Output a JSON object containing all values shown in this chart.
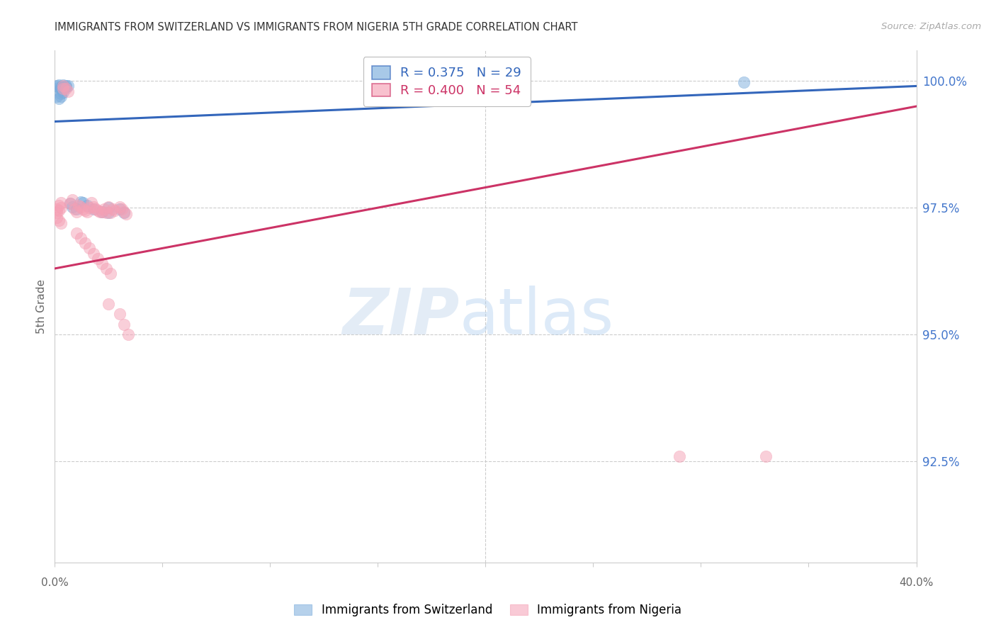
{
  "title": "IMMIGRANTS FROM SWITZERLAND VS IMMIGRANTS FROM NIGERIA 5TH GRADE CORRELATION CHART",
  "source": "Source: ZipAtlas.com",
  "ylabel": "5th Grade",
  "ytick_values": [
    0.925,
    0.95,
    0.975,
    1.0
  ],
  "ytick_labels": [
    "92.5%",
    "95.0%",
    "97.5%",
    "100.0%"
  ],
  "x_min": 0.0,
  "x_max": 0.4,
  "y_min": 0.905,
  "y_max": 1.006,
  "legend_text_blue": "R = 0.375   N = 29",
  "legend_text_pink": "R = 0.400   N = 54",
  "blue_scatter_x": [
    0.001,
    0.002,
    0.002,
    0.003,
    0.003,
    0.004,
    0.004,
    0.005,
    0.005,
    0.006,
    0.001,
    0.002,
    0.003,
    0.003,
    0.004,
    0.007,
    0.008,
    0.01,
    0.012,
    0.013,
    0.015,
    0.018,
    0.022,
    0.025,
    0.025,
    0.03,
    0.032,
    0.215,
    0.32
  ],
  "blue_scatter_y": [
    0.999,
    0.9992,
    0.9988,
    0.9985,
    0.9988,
    0.9992,
    0.9985,
    0.999,
    0.9988,
    0.999,
    0.997,
    0.9965,
    0.9975,
    0.997,
    0.9978,
    0.9758,
    0.9752,
    0.9748,
    0.9762,
    0.976,
    0.9755,
    0.9748,
    0.9742,
    0.975,
    0.974,
    0.9748,
    0.974,
    0.9992,
    0.9998
  ],
  "pink_scatter_x": [
    0.001,
    0.001,
    0.002,
    0.002,
    0.003,
    0.003,
    0.004,
    0.005,
    0.006,
    0.007,
    0.008,
    0.009,
    0.01,
    0.011,
    0.012,
    0.013,
    0.014,
    0.015,
    0.016,
    0.017,
    0.018,
    0.019,
    0.02,
    0.021,
    0.022,
    0.023,
    0.024,
    0.025,
    0.026,
    0.027,
    0.028,
    0.03,
    0.031,
    0.032,
    0.033,
    0.01,
    0.012,
    0.014,
    0.016,
    0.018,
    0.02,
    0.022,
    0.024,
    0.026,
    0.025,
    0.03,
    0.032,
    0.034,
    0.29,
    0.33,
    0.001,
    0.002,
    0.003,
    0.004
  ],
  "pink_scatter_y": [
    0.9748,
    0.974,
    0.9755,
    0.9745,
    0.976,
    0.975,
    0.999,
    0.9985,
    0.998,
    0.9758,
    0.9765,
    0.9748,
    0.9742,
    0.9755,
    0.9752,
    0.9748,
    0.9745,
    0.9742,
    0.975,
    0.976,
    0.9752,
    0.9748,
    0.9745,
    0.9742,
    0.9742,
    0.9748,
    0.974,
    0.9752,
    0.974,
    0.9748,
    0.9745,
    0.9752,
    0.9748,
    0.9742,
    0.9738,
    0.97,
    0.969,
    0.968,
    0.967,
    0.966,
    0.965,
    0.964,
    0.963,
    0.962,
    0.956,
    0.954,
    0.952,
    0.95,
    0.926,
    0.926,
    0.973,
    0.9725,
    0.972,
    0.9985
  ],
  "blue_line_x": [
    0.0,
    0.4
  ],
  "blue_line_y": [
    0.992,
    0.999
  ],
  "pink_line_x": [
    0.0,
    0.4
  ],
  "pink_line_y": [
    0.963,
    0.995
  ],
  "blue_color": "#7AACDC",
  "pink_color": "#F5A0B5",
  "blue_line_color": "#3366BB",
  "pink_line_color": "#CC3366",
  "background_color": "#FFFFFF",
  "grid_color": "#CCCCCC",
  "title_color": "#333333",
  "source_color": "#AAAAAA",
  "axis_label_color": "#666666",
  "right_axis_color": "#4477CC"
}
